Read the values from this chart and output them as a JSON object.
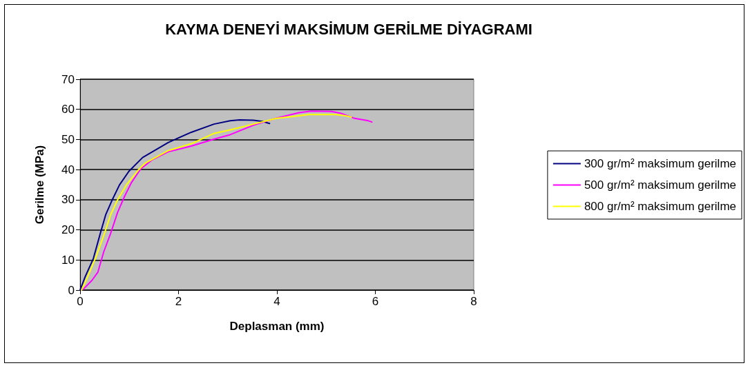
{
  "chart_data": {
    "type": "line",
    "title": "KAYMA DENEYİ MAKSİMUM GERİLME DİYAGRAMI",
    "xlabel": "Deplasman (mm)",
    "ylabel": "Gerilme (MPa)",
    "xlim": [
      0,
      8
    ],
    "xticks": [
      0,
      2,
      4,
      6,
      8
    ],
    "ylim": [
      0,
      70
    ],
    "yticks": [
      0,
      10,
      20,
      30,
      40,
      50,
      60,
      70
    ],
    "grid": "y",
    "legend": "right",
    "marker": "none",
    "line_style": "solid",
    "series": [
      {
        "name": "300 gr/m² maksimum gerilme",
        "color": "#000080",
        "x": [
          0,
          0.1,
          0.27,
          0.41,
          0.52,
          0.64,
          0.8,
          0.99,
          1.27,
          1.79,
          2.26,
          2.72,
          3.05,
          3.24,
          3.52,
          3.71,
          3.85
        ],
        "values": [
          0,
          4.3,
          10.5,
          18.8,
          25,
          29.5,
          34.9,
          39.4,
          44,
          49,
          52.4,
          55.1,
          56.2,
          56.5,
          56.4,
          56,
          55.3
        ]
      },
      {
        "name": "500 gr/m² maksimum gerilme",
        "color": "#ff00ff",
        "x": [
          0.06,
          0.24,
          0.36,
          0.48,
          0.62,
          0.76,
          0.9,
          1.04,
          1.23,
          1.46,
          1.79,
          2.26,
          2.72,
          3.05,
          3.52,
          3.99,
          4.45,
          4.69,
          5.11,
          5.3,
          5.58,
          5.86,
          5.93
        ],
        "values": [
          0.2,
          3.2,
          5.9,
          12.7,
          18.8,
          25.7,
          31,
          35.6,
          40.2,
          43.2,
          45.9,
          47.8,
          50.1,
          51.6,
          54.7,
          57.1,
          58.9,
          59.4,
          59.3,
          58.7,
          57,
          56.2,
          55.8
        ]
      },
      {
        "name": "800 gr/m² maksimum gerilme",
        "color": "#ffff00",
        "x": [
          0.03,
          0.15,
          0.31,
          0.48,
          0.62,
          0.76,
          0.94,
          1.18,
          1.32,
          1.79,
          2.26,
          2.72,
          3.05,
          3.52,
          3.99,
          4.45,
          4.64,
          5.2,
          5.39,
          5.51
        ],
        "values": [
          0,
          4.3,
          10.5,
          18.1,
          25,
          29.9,
          34.9,
          39.8,
          42.1,
          46.3,
          48.6,
          52,
          53.2,
          55.1,
          57,
          57.9,
          58.3,
          58.3,
          57.9,
          57.4
        ]
      }
    ]
  }
}
